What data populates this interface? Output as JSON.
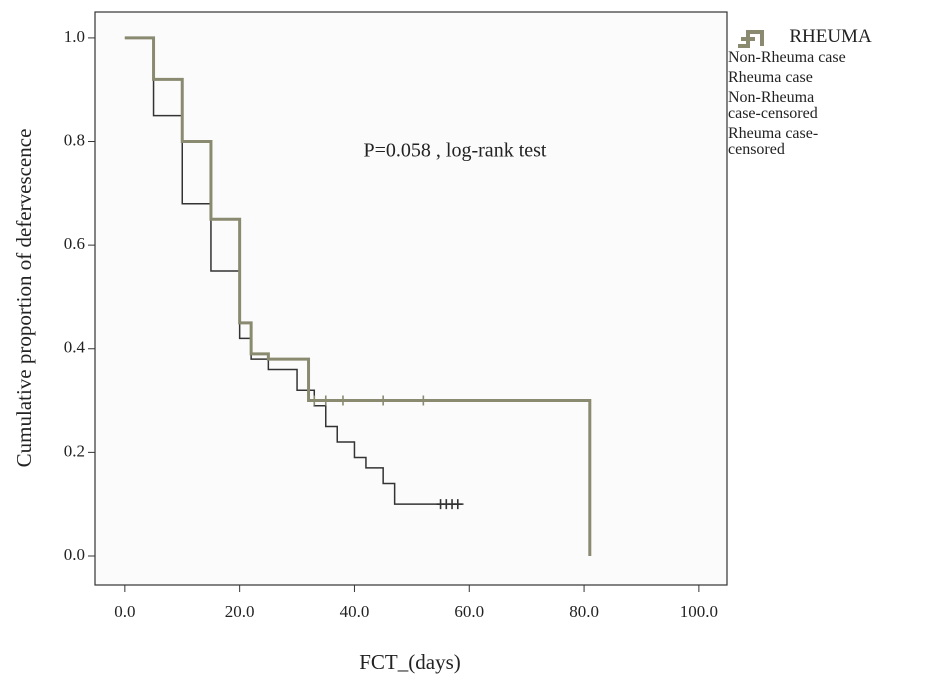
{
  "chart_data": {
    "type": "step",
    "annotation": "P=0.058 , log-rank test",
    "x_label": "FCT_(days)",
    "y_label": "Cumulative proportion of defervescence",
    "legend_title": "RHEUMA",
    "xlim": [
      -5.2,
      104.9
    ],
    "ylim": [
      -0.056,
      1.05
    ],
    "xticks": [
      {
        "value": 0,
        "label": "0.0"
      },
      {
        "value": 20,
        "label": "20.0"
      },
      {
        "value": 40,
        "label": "40.0"
      },
      {
        "value": 60,
        "label": "60.0"
      },
      {
        "value": 80,
        "label": "80.0"
      },
      {
        "value": 100,
        "label": "100.0"
      }
    ],
    "yticks": [
      {
        "value": 0,
        "label": "0.0"
      },
      {
        "value": 0.2,
        "label": "0.2"
      },
      {
        "value": 0.4,
        "label": "0.4"
      },
      {
        "value": 0.6,
        "label": "0.6"
      },
      {
        "value": 0.8,
        "label": "0.8"
      },
      {
        "value": 1.0,
        "label": "1.0"
      }
    ],
    "series": [
      {
        "name": "Non-Rheuma case",
        "color": "#333333",
        "marker": "step",
        "x": [
          0,
          5,
          10,
          15,
          20,
          22,
          25,
          30,
          33,
          35,
          37,
          40,
          42,
          45,
          47,
          59
        ],
        "values": [
          1.0,
          0.85,
          0.68,
          0.55,
          0.42,
          0.38,
          0.36,
          0.32,
          0.29,
          0.25,
          0.22,
          0.19,
          0.17,
          0.14,
          0.1,
          0.1
        ]
      },
      {
        "name": "Rheuma case",
        "color": "#8a8a70",
        "marker": "step",
        "x": [
          0,
          5,
          10,
          15,
          20,
          22,
          25,
          32,
          81,
          81
        ],
        "values": [
          1.0,
          0.92,
          0.8,
          0.65,
          0.45,
          0.39,
          0.38,
          0.3,
          0.3,
          0.0
        ]
      },
      {
        "name": "Non-Rheuma case-censored",
        "color": "#333333",
        "marker": "plus",
        "x": [
          55,
          56,
          57,
          58
        ],
        "values": [
          0.1,
          0.1,
          0.1,
          0.1
        ]
      },
      {
        "name": "Rheuma case-censored",
        "color": "#8a8a70",
        "marker": "plus",
        "x": [
          33,
          35,
          38,
          45,
          52
        ],
        "values": [
          0.3,
          0.3,
          0.3,
          0.3,
          0.3
        ]
      }
    ]
  }
}
